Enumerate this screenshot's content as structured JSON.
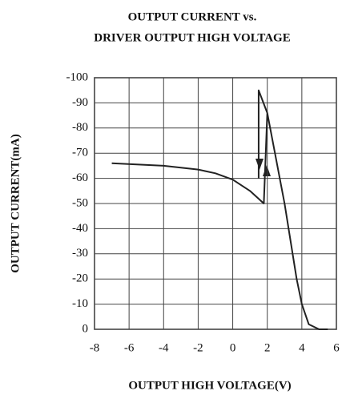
{
  "chart_data": {
    "type": "line",
    "title": "OUTPUT CURRENT vs.",
    "subtitle": "DRIVER OUTPUT HIGH VOLTAGE",
    "x_label": "OUTPUT HIGH VOLTAGE(V)",
    "y_label": "OUTPUT CURRENT(mA)",
    "xlim": [
      -8,
      6
    ],
    "xticks": [
      -8,
      -6,
      -4,
      -2,
      0,
      2,
      4,
      6
    ],
    "ylim": [
      0,
      -100
    ],
    "yticks": [
      0,
      -10,
      -20,
      -30,
      -40,
      -50,
      -60,
      -70,
      -80,
      -90,
      -100
    ],
    "grid": true,
    "series": [
      {
        "color": "#222222",
        "x": [
          -7,
          -4,
          -2,
          -1,
          0,
          1,
          1.8,
          2,
          3,
          3.7,
          4,
          4.4,
          5,
          5.5,
          null,
          1.5,
          1.5,
          2
        ],
        "values": [
          -66,
          -65,
          -63.5,
          -62,
          -59.5,
          -55,
          -50,
          -86,
          -50,
          -20,
          -10,
          -2,
          0,
          0,
          null,
          -60,
          -95,
          -86
        ]
      }
    ]
  }
}
